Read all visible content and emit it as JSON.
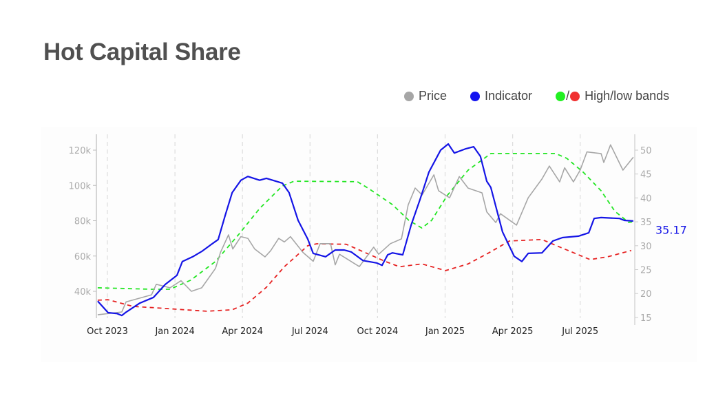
{
  "header": {
    "title": "Hot Capital Share"
  },
  "legend": {
    "price": "Price",
    "indicator": "Indicator",
    "bands": "High/low bands",
    "slash": "/"
  },
  "colors": {
    "price": "#a6a6a6",
    "indicator": "#1414e6",
    "high": "#22e622",
    "low": "#e62222",
    "title": "#505050"
  },
  "chart_data": {
    "type": "line",
    "title": "Hot Capital Share",
    "x_unit": "months since 2023-10-01",
    "xlim": [
      -0.5,
      23.5
    ],
    "x_ticks": [
      {
        "value": 0,
        "label": "Oct 2023"
      },
      {
        "value": 3,
        "label": "Jan 2024"
      },
      {
        "value": 6,
        "label": "Apr 2024"
      },
      {
        "value": 9,
        "label": "Jul 2024"
      },
      {
        "value": 12,
        "label": "Oct 2024"
      },
      {
        "value": 15,
        "label": "Jan 2025"
      },
      {
        "value": 18,
        "label": "Apr 2025"
      },
      {
        "value": 21,
        "label": "Jul 2025"
      }
    ],
    "y_left": {
      "label": "Price",
      "ticks": [
        {
          "value": 40,
          "label": "40k"
        },
        {
          "value": 60,
          "label": "60k"
        },
        {
          "value": 80,
          "label": "80k"
        },
        {
          "value": 100,
          "label": "100k"
        },
        {
          "value": 120,
          "label": "120k"
        }
      ],
      "unit": "thousands USD"
    },
    "y_right": {
      "label": "Indicator",
      "ticks": [
        {
          "value": 15,
          "label": "15"
        },
        {
          "value": 20,
          "label": "20"
        },
        {
          "value": 25,
          "label": "25"
        },
        {
          "value": 30,
          "label": "30"
        },
        {
          "value": 35,
          "label": "35"
        },
        {
          "value": 40,
          "label": "40"
        },
        {
          "value": 45,
          "label": "45"
        },
        {
          "value": 50,
          "label": "50"
        }
      ]
    },
    "grid": "vertical dashed",
    "legend_position": "top-right",
    "last_value_label": "35.17",
    "series": [
      {
        "name": "Price",
        "axis": "left",
        "key": "price",
        "dash": false,
        "x": [
          -0.43,
          0.64,
          0.83,
          1.96,
          2.17,
          2.78,
          3.27,
          3.73,
          4.19,
          4.8,
          5.02,
          5.38,
          5.57,
          5.93,
          6.24,
          6.54,
          7.0,
          7.25,
          7.61,
          7.86,
          8.13,
          8.69,
          9.14,
          9.45,
          9.91,
          10.12,
          10.31,
          11.19,
          11.83,
          12.05,
          12.57,
          13.06,
          13.36,
          13.67,
          13.98,
          14.5,
          14.71,
          15.2,
          15.63,
          16.02,
          16.64,
          16.85,
          17.25,
          17.46,
          18.17,
          18.69,
          19.3,
          19.63,
          20.09,
          20.31,
          20.7,
          21.0,
          21.3,
          21.93,
          22.05,
          22.35,
          22.9,
          23.36
        ],
        "y": [
          26.7,
          28.3,
          34,
          38,
          44,
          42,
          46,
          40,
          42,
          53,
          62,
          72,
          64,
          71,
          70,
          64,
          59.5,
          63,
          70,
          68,
          71,
          62,
          57,
          67,
          67,
          55,
          61,
          54,
          65,
          61,
          67,
          69.7,
          89,
          98.5,
          94.6,
          106,
          97,
          93,
          105,
          98.5,
          95.8,
          85,
          79,
          84,
          77.5,
          93,
          103.6,
          111,
          102,
          110,
          102,
          108.7,
          119,
          118,
          113,
          123,
          108.7,
          116
        ]
      },
      {
        "name": "Indicator",
        "axis": "right",
        "key": "indicator",
        "dash": false,
        "x": [
          -0.43,
          0.03,
          0.43,
          0.64,
          0.83,
          1.44,
          2.05,
          2.57,
          3.09,
          3.33,
          3.79,
          4.19,
          4.62,
          4.92,
          5.23,
          5.54,
          5.93,
          6.24,
          6.76,
          7.06,
          7.77,
          8.07,
          8.47,
          8.9,
          9.14,
          9.69,
          10.12,
          10.52,
          10.83,
          11.35,
          11.96,
          12.2,
          12.45,
          12.66,
          13.12,
          13.49,
          13.88,
          14.28,
          14.8,
          15.14,
          15.41,
          15.93,
          16.27,
          16.57,
          16.85,
          17.03,
          17.55,
          18.07,
          18.41,
          18.69,
          19.3,
          19.79,
          20.21,
          20.92,
          21.38,
          21.62,
          21.93,
          22.75,
          22.96,
          23.36
        ],
        "y": [
          18.4,
          16.0,
          15.8,
          15.4,
          16.1,
          18.0,
          19.2,
          21.9,
          23.8,
          26.7,
          27.7,
          28.8,
          30.3,
          31.3,
          36.3,
          41.1,
          43.7,
          44.5,
          43.7,
          44.1,
          43.1,
          41.1,
          35.3,
          31.4,
          28.4,
          27.7,
          29.1,
          29.1,
          28.7,
          26.9,
          26.4,
          25.9,
          28.1,
          28.5,
          28.1,
          34.3,
          39.6,
          45.4,
          50,
          51.3,
          49.4,
          50.3,
          50.7,
          48.7,
          43.5,
          42.2,
          32.9,
          27.8,
          26.7,
          28.4,
          28.5,
          31.0,
          31.7,
          32.0,
          32.7,
          35.7,
          35.9,
          35.7,
          35.3,
          35.17
        ]
      },
      {
        "name": "High band",
        "axis": "right",
        "key": "high",
        "dash": true,
        "x": [
          -0.43,
          1.96,
          2.78,
          3.7,
          4.8,
          5.84,
          6.76,
          7.77,
          8.29,
          11.1,
          11.56,
          12.66,
          13.39,
          13.97,
          14.4,
          15.11,
          16.02,
          17.03,
          17.86,
          19.91,
          20.4,
          21.13,
          21.93,
          22.54,
          23.15,
          23.36
        ],
        "y": [
          21.2,
          20.9,
          20.9,
          22.8,
          26.7,
          32.4,
          37.8,
          42.5,
          43.5,
          43.4,
          42.1,
          38.6,
          35.3,
          33.7,
          35.3,
          40.6,
          45.8,
          49.3,
          49.3,
          49.3,
          48.3,
          45.4,
          41.5,
          37.2,
          34.9,
          35.0
        ]
      },
      {
        "name": "Low band",
        "axis": "right",
        "key": "low",
        "dash": true,
        "x": [
          -0.43,
          0.03,
          1.13,
          2.17,
          4.4,
          5.54,
          6.24,
          7.06,
          7.86,
          8.9,
          9.3,
          10.61,
          11.53,
          12.35,
          12.97,
          13.97,
          15.02,
          16.02,
          16.94,
          17.86,
          19.3,
          20.21,
          21.44,
          22.23,
          23.27
        ],
        "y": [
          18.6,
          18.7,
          17.3,
          17.0,
          16.3,
          16.6,
          18.0,
          21.3,
          25.6,
          30.0,
          30.4,
          30.3,
          28.4,
          26.7,
          25.6,
          26.2,
          24.8,
          26.2,
          28.5,
          31.0,
          31.3,
          29.5,
          27.1,
          27.7,
          29.0
        ]
      }
    ]
  }
}
